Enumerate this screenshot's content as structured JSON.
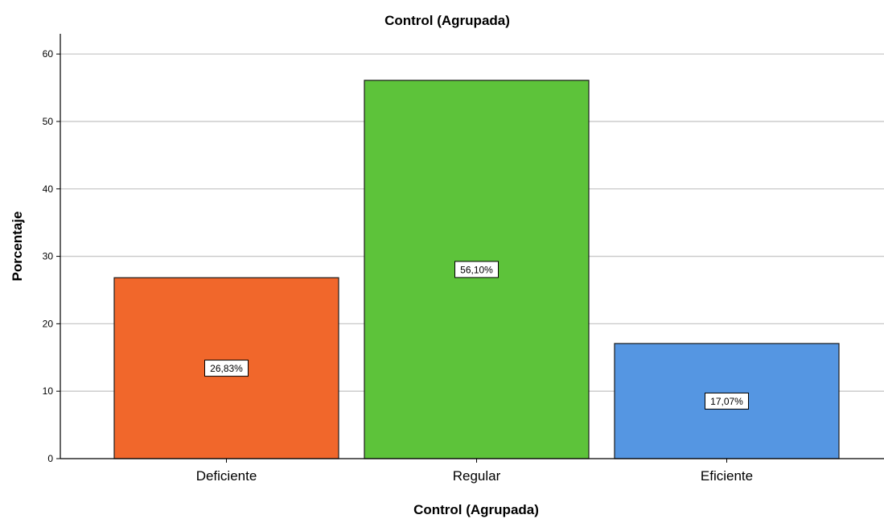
{
  "chart_data": {
    "type": "bar",
    "title": "Control (Agrupada)",
    "xlabel": "Control (Agrupada)",
    "ylabel": "Porcentaje",
    "categories": [
      "Deficiente",
      "Regular",
      "Eficiente"
    ],
    "values": [
      26.83,
      56.1,
      17.07
    ],
    "data_labels": [
      "26,83%",
      "56,10%",
      "17,07%"
    ],
    "colors": [
      "#F1672B",
      "#5DC33A",
      "#5596E2"
    ],
    "ylim": [
      0,
      63
    ],
    "yticks": [
      0,
      10,
      20,
      30,
      40,
      50,
      60
    ],
    "grid": true
  }
}
